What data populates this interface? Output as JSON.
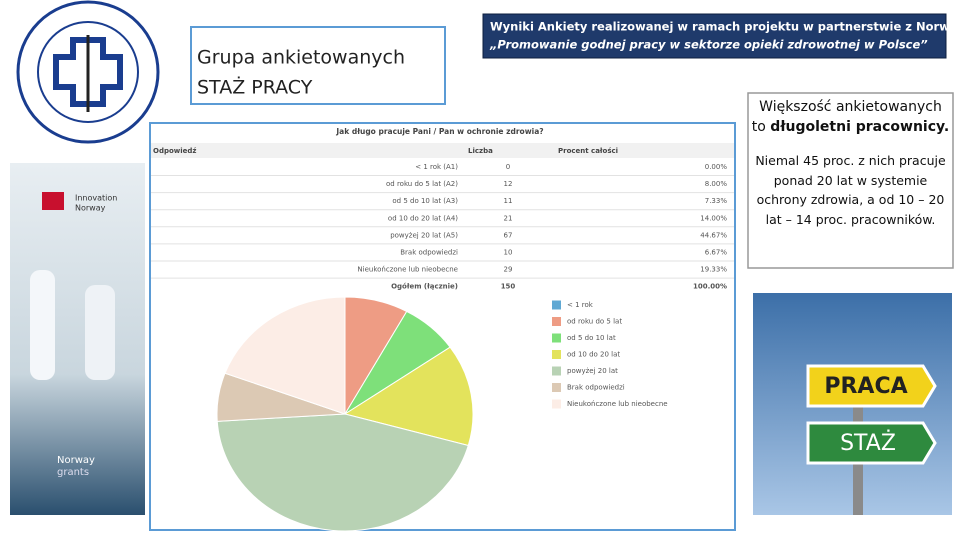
{
  "header": {
    "group_title": [
      "Grupa ankietowanych",
      "STAŻ PRACY"
    ],
    "banner": [
      "Wyniki Ankiety realizowanej w ramach projektu w partnerstwie z Norwegią",
      "„Promowanie godnej pracy w sektorze opieki zdrowotnej w Polsce”"
    ]
  },
  "left_image": {
    "brand": [
      "Innovation",
      "Norway"
    ],
    "grants": [
      "Norway",
      "grants"
    ]
  },
  "signs": [
    "PRACA",
    "STAŻ"
  ],
  "summary": {
    "lead": "Większość ankietowanych to ",
    "lead_bold": "długoletni pracownicy.",
    "body": "Niemal 45 proc. z nich pracuje ponad 20 lat w systemie ochrony zdrowia, a od 10 – 20 lat – 14 proc. pracowników."
  },
  "table": {
    "title": "Jak długo pracuje Pani / Pan w ochronie zdrowia?",
    "headers": [
      "Odpowiedź",
      "Liczba",
      "Procent całości"
    ],
    "rows": [
      [
        "< 1 rok (A1)",
        0,
        "0.00%"
      ],
      [
        "od roku do 5 lat (A2)",
        12,
        "8.00%"
      ],
      [
        "od 5 do 10 lat (A3)",
        11,
        "7.33%"
      ],
      [
        "od 10 do 20 lat (A4)",
        21,
        "14.00%"
      ],
      [
        "powyżej 20 lat (A5)",
        67,
        "44.67%"
      ],
      [
        "Brak odpowiedzi",
        10,
        "6.67%"
      ],
      [
        "Nieukończone lub nieobecne",
        29,
        "19.33%"
      ],
      [
        "Ogółem (łącznie)",
        150,
        "100.00%"
      ]
    ]
  },
  "chart_data": {
    "type": "pie",
    "categories": [
      "< 1 rok",
      "od roku do 5 lat",
      "od 5 do 10 lat",
      "od 10 do 20 lat",
      "powyżej 20 lat",
      "Brak odpowiedzi",
      "Nieukończone lub nieobecne"
    ],
    "values": [
      0,
      12,
      11,
      21,
      67,
      10,
      29
    ],
    "colors": [
      "#5fa8d3",
      "#ee9c84",
      "#7ee07a",
      "#e3e35c",
      "#b8d2b4",
      "#dcc9b4",
      "#fcede6"
    ]
  }
}
